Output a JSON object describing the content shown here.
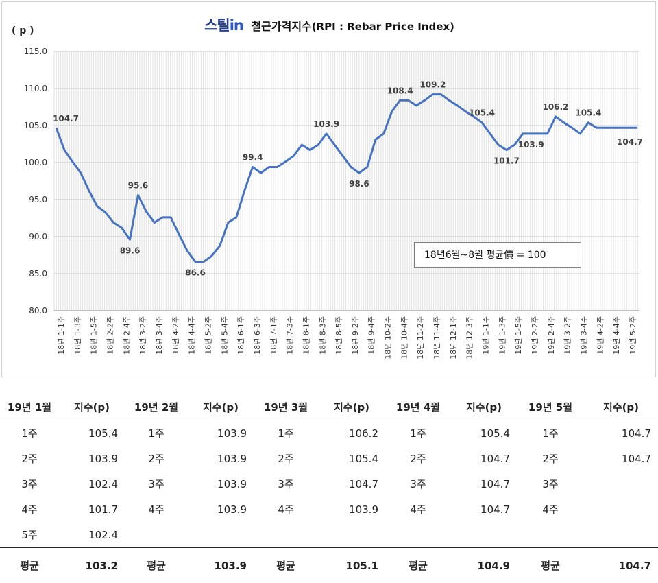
{
  "chart": {
    "brand": "스틸",
    "brand_suffix": "in",
    "title_main": " 철근가격지수",
    "title_sub": "(RPI : Rebar Price Index)",
    "y_unit": "( p )",
    "base_note": "18년6월~8월 평균價 = 100"
  },
  "chart_data": {
    "type": "line",
    "title": "철근가격지수(RPI : Rebar Price Index)",
    "ylabel": "( p )",
    "xlabel": "",
    "ylim": [
      80,
      115
    ],
    "yticks": [
      "80.0",
      "85.0",
      "90.0",
      "95.0",
      "100.0",
      "105.0",
      "110.0",
      "115.0"
    ],
    "grid": true,
    "legend": "none",
    "color": "#4472C4",
    "x_tick_labels": [
      "18년 1-1주",
      "18년 1-3주",
      "18년 1-5주",
      "18년 2-2주",
      "18년 2-4주",
      "18년 3-2주",
      "18년 3-4주",
      "18년 4-2주",
      "18년 4-4주",
      "18년 5-2주",
      "18년 5-4주",
      "18년 6-1주",
      "18년 6-3주",
      "18년 7-1주",
      "18년 7-3주",
      "18년 8-1주",
      "18년 8-3주",
      "18년 8-5주",
      "18년 9-2주",
      "18년 9-4주",
      "18년 10-2주",
      "18년 10-4주",
      "18년 11-2주",
      "18년 11-4주",
      "18년 12-1주",
      "18년 12-3주",
      "19년 1-1주",
      "19년 1-3주",
      "19년 1-5주",
      "19년 2-2주",
      "19년 2-4주",
      "19년 3-2주",
      "19년 3-4주",
      "19년 4-2주",
      "19년 4-4주",
      "19년 5-2주"
    ],
    "values": [
      104.7,
      101.7,
      100.1,
      98.6,
      96.2,
      94.1,
      93.3,
      91.9,
      91.2,
      89.6,
      95.6,
      93.4,
      91.9,
      92.6,
      92.6,
      90.3,
      88.1,
      86.6,
      86.6,
      87.4,
      88.8,
      91.9,
      92.6,
      96.2,
      99.4,
      98.6,
      99.4,
      99.4,
      100.1,
      100.9,
      102.4,
      101.7,
      102.4,
      103.9,
      102.4,
      100.9,
      99.4,
      98.6,
      99.4,
      103.1,
      103.9,
      106.9,
      108.4,
      108.4,
      107.7,
      108.4,
      109.2,
      109.2,
      108.4,
      107.7,
      106.9,
      106.2,
      105.4,
      103.9,
      102.4,
      101.7,
      102.4,
      103.9,
      103.9,
      103.9,
      103.9,
      106.2,
      105.4,
      104.7,
      103.9,
      105.4,
      104.7,
      104.7,
      104.7,
      104.7,
      104.7,
      104.7
    ],
    "data_labels": [
      {
        "index": 0,
        "text": "104.7"
      },
      {
        "index": 9,
        "text": "89.6"
      },
      {
        "index": 10,
        "text": "95.6"
      },
      {
        "index": 17,
        "text": "86.6"
      },
      {
        "index": 24,
        "text": "99.4"
      },
      {
        "index": 33,
        "text": "103.9"
      },
      {
        "index": 37,
        "text": "98.6"
      },
      {
        "index": 42,
        "text": "108.4"
      },
      {
        "index": 46,
        "text": "109.2"
      },
      {
        "index": 52,
        "text": "105.4"
      },
      {
        "index": 55,
        "text": "101.7"
      },
      {
        "index": 58,
        "text": "103.9"
      },
      {
        "index": 61,
        "text": "106.2"
      },
      {
        "index": 65,
        "text": "105.4"
      },
      {
        "index": 71,
        "text": "104.7"
      }
    ]
  },
  "table": {
    "headers": [
      {
        "month": "19년 1월",
        "unit": "지수(p)"
      },
      {
        "month": "19년 2월",
        "unit": "지수(p)"
      },
      {
        "month": "19년 3월",
        "unit": "지수(p)"
      },
      {
        "month": "19년 4월",
        "unit": "지수(p)"
      },
      {
        "month": "19년 5월",
        "unit": "지수(p)"
      }
    ],
    "rows": [
      [
        [
          "1주",
          "105.4"
        ],
        [
          "1주",
          "103.9"
        ],
        [
          "1주",
          "106.2"
        ],
        [
          "1주",
          "105.4"
        ],
        [
          "1주",
          "104.7"
        ]
      ],
      [
        [
          "2주",
          "103.9"
        ],
        [
          "2주",
          "103.9"
        ],
        [
          "2주",
          "105.4"
        ],
        [
          "2주",
          "104.7"
        ],
        [
          "2주",
          "104.7"
        ]
      ],
      [
        [
          "3주",
          "102.4"
        ],
        [
          "3주",
          "103.9"
        ],
        [
          "3주",
          "104.7"
        ],
        [
          "3주",
          "104.7"
        ],
        [
          "3주",
          ""
        ]
      ],
      [
        [
          "4주",
          "101.7"
        ],
        [
          "4주",
          "103.9"
        ],
        [
          "4주",
          "103.9"
        ],
        [
          "4주",
          "104.7"
        ],
        [
          "4주",
          ""
        ]
      ],
      [
        [
          "5주",
          "102.4"
        ],
        [
          "",
          ""
        ],
        [
          "",
          ""
        ],
        [
          "",
          ""
        ],
        [
          "",
          ""
        ]
      ]
    ],
    "avg_label": "평균",
    "averages": [
      "103.2",
      "103.9",
      "105.1",
      "104.9",
      "104.7"
    ]
  }
}
